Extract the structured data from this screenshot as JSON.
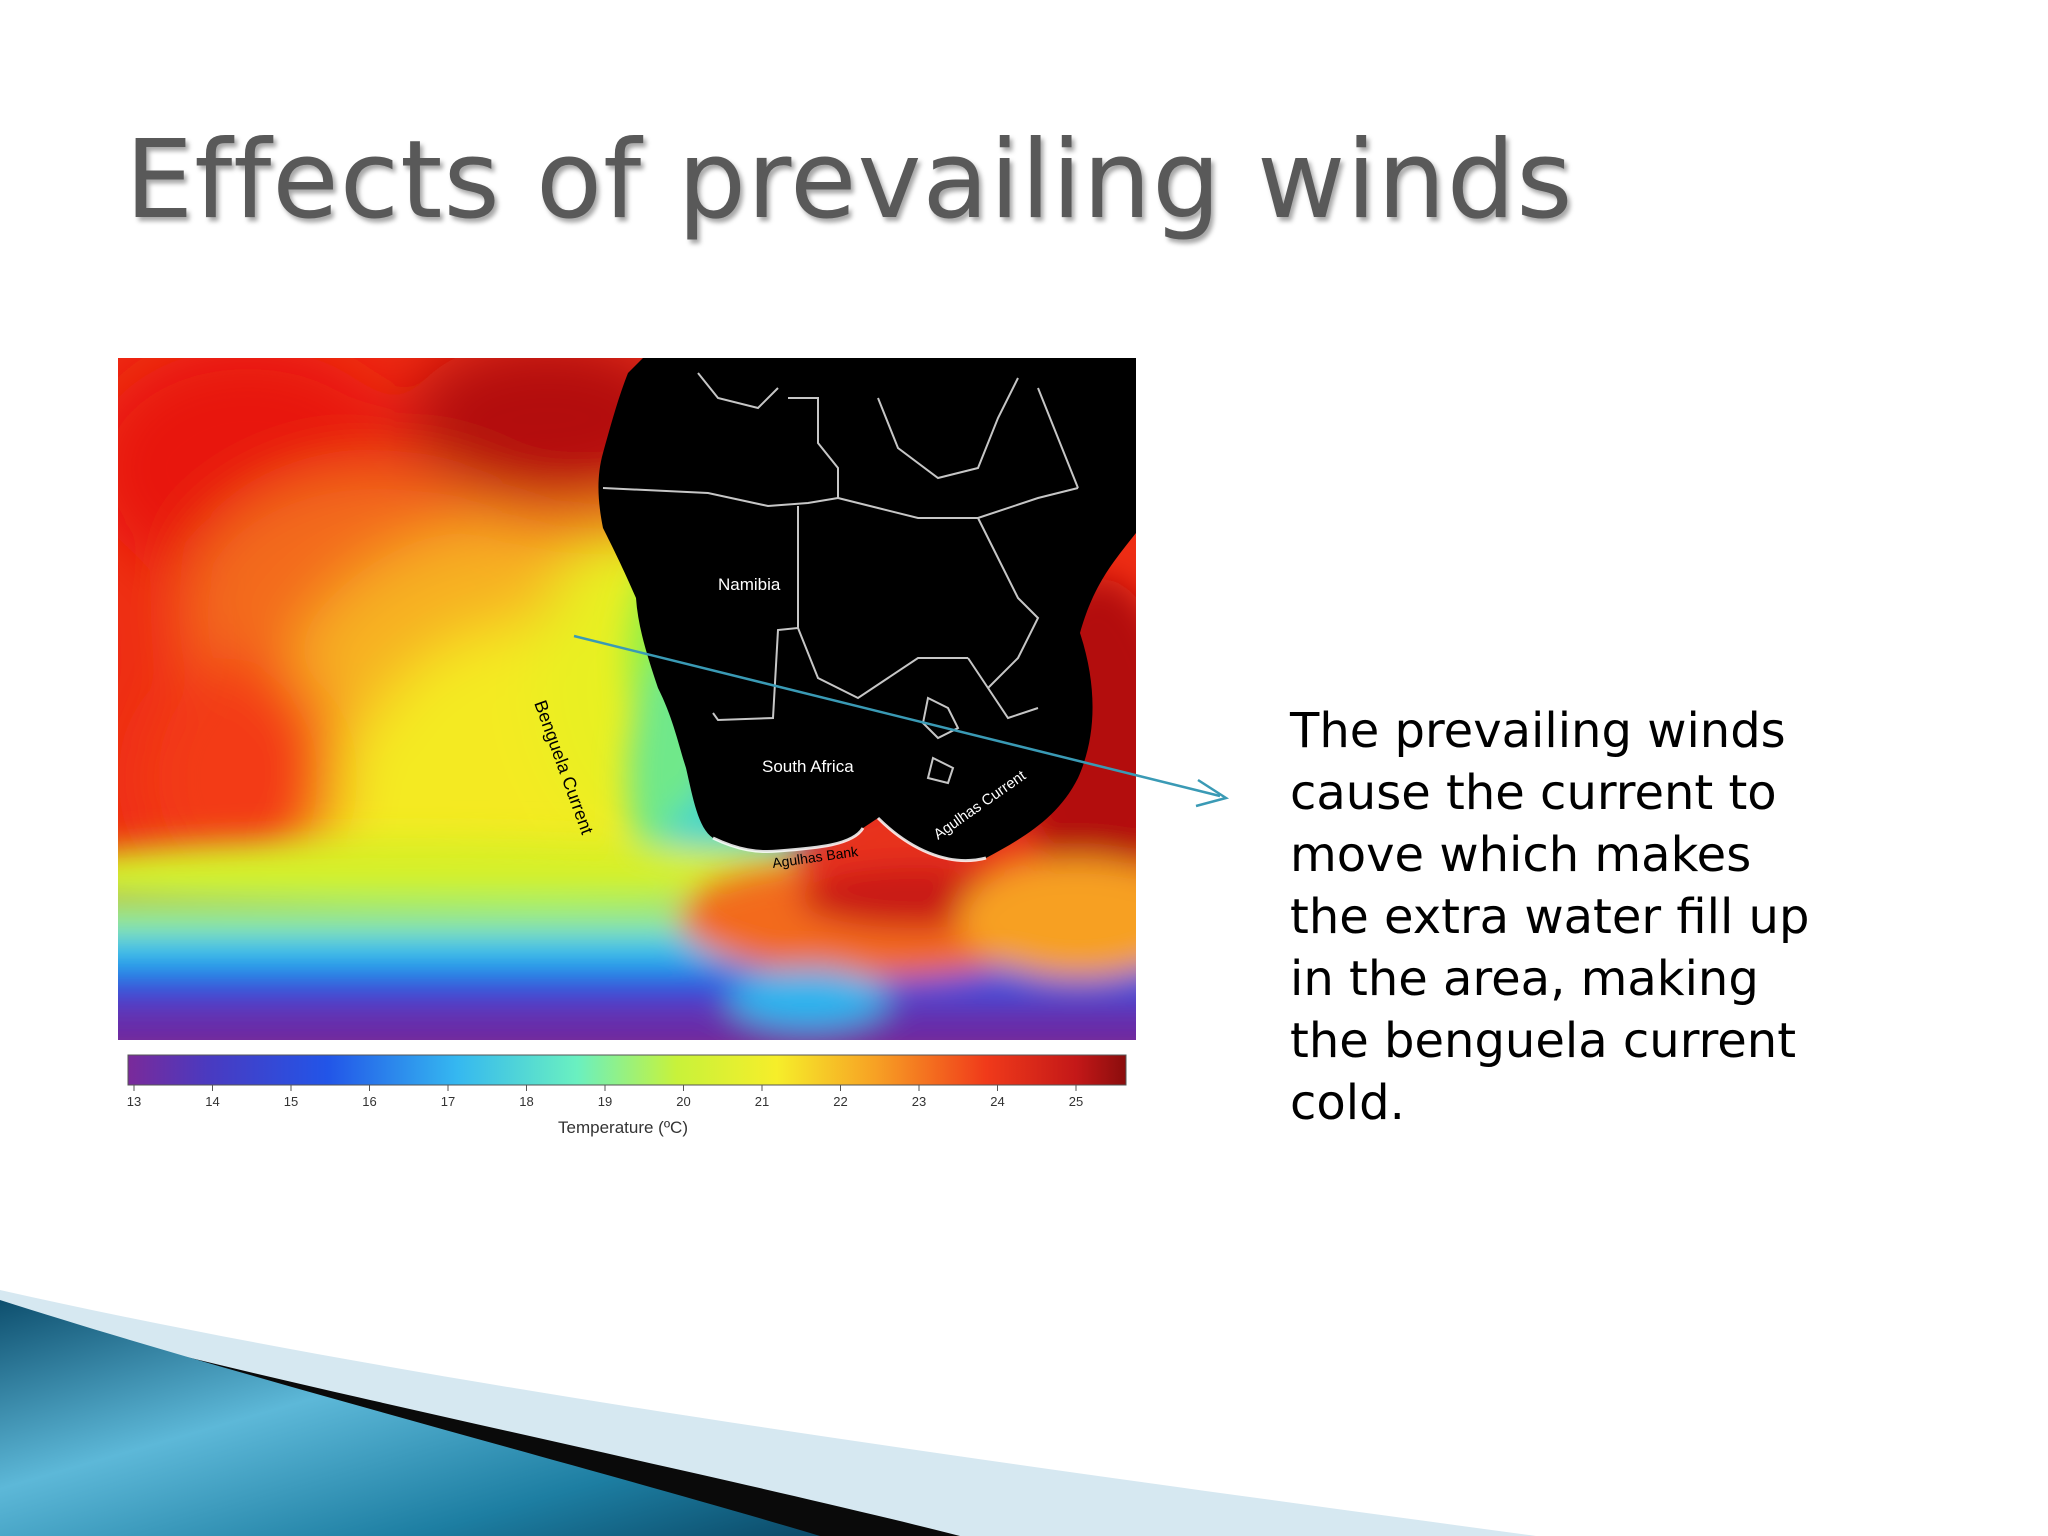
{
  "slide": {
    "title": "Effects of prevailing winds",
    "body_text": "The prevailing winds cause the current to move which makes the extra water fill up in the area, making the benguela current cold."
  },
  "map": {
    "labels": {
      "namibia": "Namibia",
      "south_africa": "South Africa",
      "benguela_current": "Benguela Current",
      "agulhas_current": "Agulhas Current",
      "agulhas_bank": "Agulhas Bank"
    },
    "colorbar": {
      "title": "Temperature (ºC)",
      "ticks": [
        "13",
        "14",
        "15",
        "16",
        "17",
        "18",
        "19",
        "20",
        "21",
        "22",
        "23",
        "24",
        "25"
      ],
      "range": [
        13,
        25
      ]
    }
  },
  "colors": {
    "title": "#595959",
    "arrow": "#3a9ab5",
    "land": "#000000",
    "decor_teal": "#1f7fa0",
    "decor_light": "#d6e8f1"
  }
}
